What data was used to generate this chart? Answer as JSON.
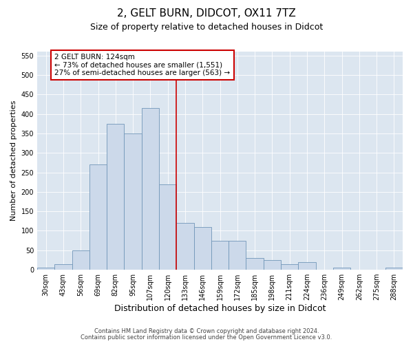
{
  "title": "2, GELT BURN, DIDCOT, OX11 7TZ",
  "subtitle": "Size of property relative to detached houses in Didcot",
  "xlabel": "Distribution of detached houses by size in Didcot",
  "ylabel": "Number of detached properties",
  "categories": [
    "30sqm",
    "43sqm",
    "56sqm",
    "69sqm",
    "82sqm",
    "95sqm",
    "107sqm",
    "120sqm",
    "133sqm",
    "146sqm",
    "159sqm",
    "172sqm",
    "185sqm",
    "198sqm",
    "211sqm",
    "224sqm",
    "236sqm",
    "249sqm",
    "262sqm",
    "275sqm",
    "288sqm"
  ],
  "values": [
    5,
    15,
    50,
    270,
    375,
    350,
    415,
    220,
    120,
    110,
    75,
    75,
    30,
    25,
    15,
    20,
    0,
    5,
    0,
    0,
    5
  ],
  "bar_color": "#ccd9ea",
  "bar_edge_color": "#7096b8",
  "vline_x_idx": 7.5,
  "vline_color": "#cc0000",
  "annotation_text": "2 GELT BURN: 124sqm\n← 73% of detached houses are smaller (1,551)\n27% of semi-detached houses are larger (563) →",
  "annotation_box_color": "#ffffff",
  "annotation_box_edge_color": "#cc0000",
  "ylim": [
    0,
    560
  ],
  "yticks": [
    0,
    50,
    100,
    150,
    200,
    250,
    300,
    350,
    400,
    450,
    500,
    550
  ],
  "background_color": "#dce6f0",
  "footer_line1": "Contains HM Land Registry data © Crown copyright and database right 2024.",
  "footer_line2": "Contains public sector information licensed under the Open Government Licence v3.0.",
  "title_fontsize": 11,
  "subtitle_fontsize": 9,
  "xlabel_fontsize": 9,
  "ylabel_fontsize": 8,
  "tick_fontsize": 7,
  "annotation_fontsize": 7.5,
  "footer_fontsize": 6
}
